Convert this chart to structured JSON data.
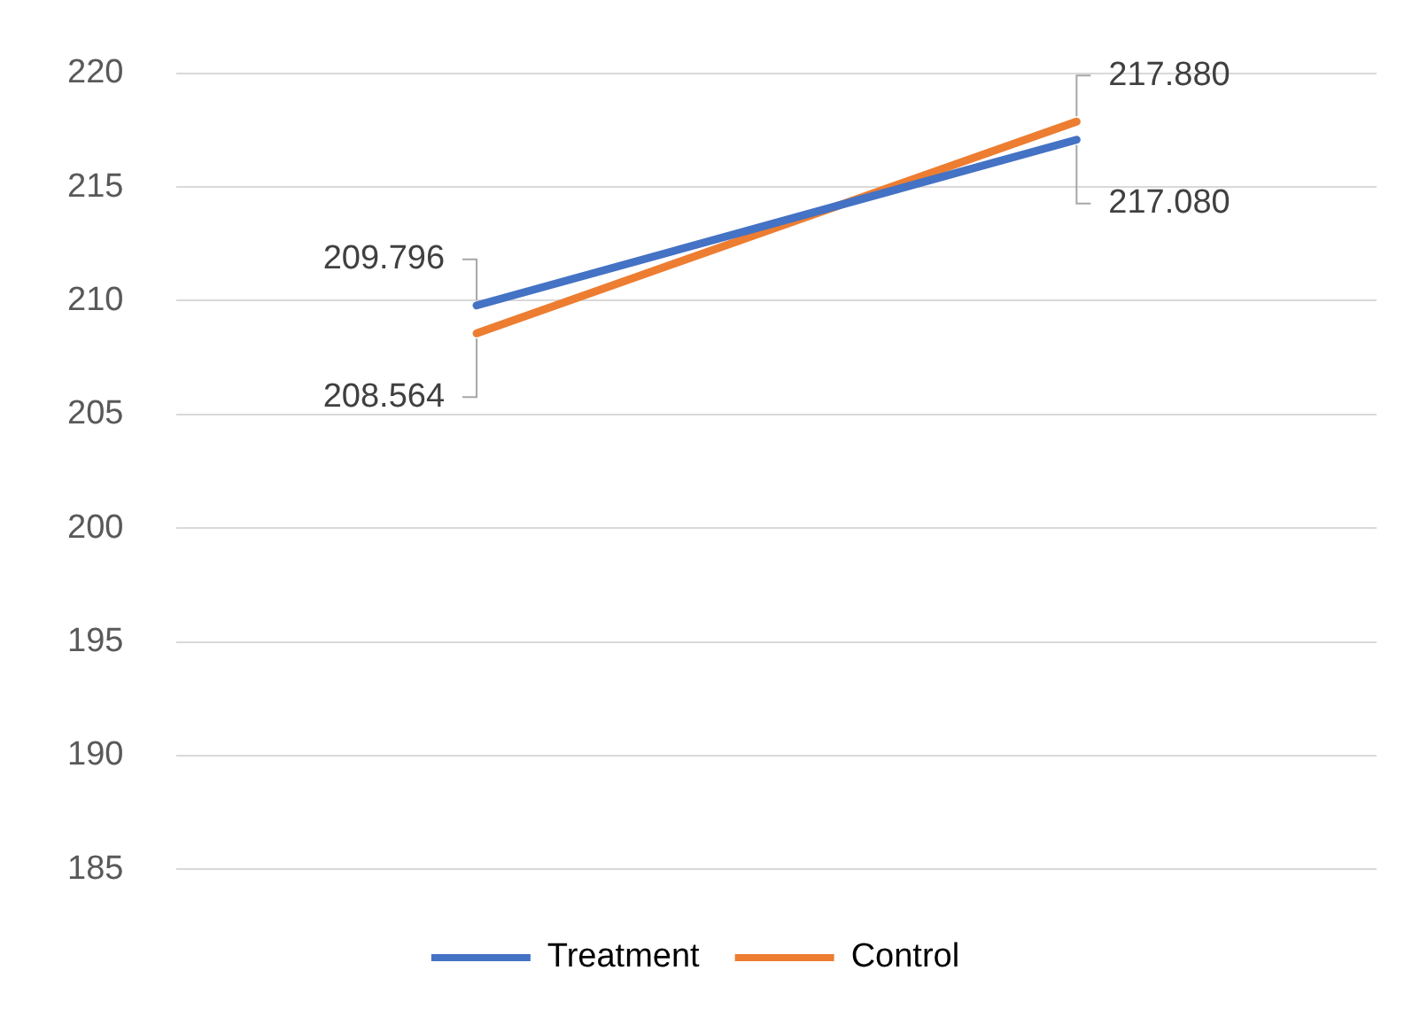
{
  "chart_data": {
    "type": "line",
    "categories": [
      null,
      null
    ],
    "series": [
      {
        "name": "Treatment",
        "color": "#4472c4",
        "values": [
          209.796,
          217.08
        ],
        "value_labels": [
          "209.796",
          "217.080"
        ]
      },
      {
        "name": "Control",
        "color": "#ed7d31",
        "values": [
          208.564,
          217.88
        ],
        "value_labels": [
          "208.564",
          "217.880"
        ]
      }
    ],
    "ylim": [
      185,
      220
    ],
    "yticks": [
      185,
      190,
      195,
      200,
      205,
      210,
      215,
      220
    ],
    "grid": "y",
    "legend": "bottom",
    "marker": "none",
    "line_style": "solid"
  }
}
